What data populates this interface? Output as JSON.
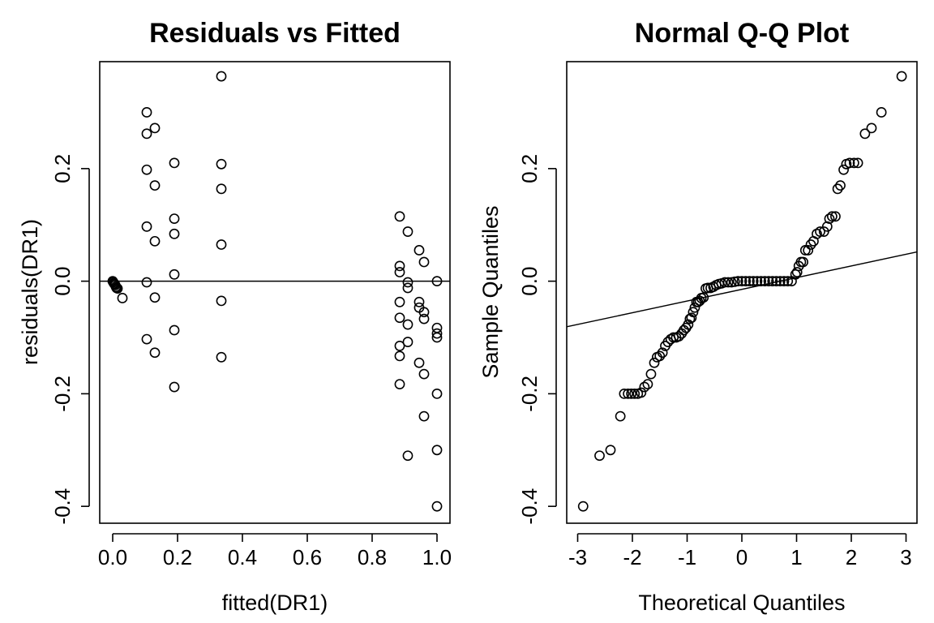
{
  "chart_data": [
    {
      "type": "scatter",
      "title": "Residuals vs Fitted",
      "xlabel": "fitted(DR1)",
      "ylabel": "residuals(DR1)",
      "xlim": [
        -0.04,
        1.04
      ],
      "ylim": [
        -0.43,
        0.39
      ],
      "xticks": [
        0.0,
        0.2,
        0.4,
        0.6,
        0.8,
        1.0
      ],
      "xtick_labels": [
        "0.0",
        "0.2",
        "0.4",
        "0.6",
        "0.8",
        "1.0"
      ],
      "yticks": [
        -0.4,
        -0.2,
        0.0,
        0.2
      ],
      "ytick_labels": [
        "-0.4",
        "-0.2",
        "0.0",
        "0.2"
      ],
      "hline": 0.0,
      "grid": false,
      "points": [
        [
          0.0,
          0.0
        ],
        [
          0.002,
          -0.002
        ],
        [
          0.004,
          -0.004
        ],
        [
          0.006,
          -0.005
        ],
        [
          0.008,
          -0.007
        ],
        [
          0.01,
          -0.01
        ],
        [
          0.012,
          -0.012
        ],
        [
          0.015,
          -0.013
        ],
        [
          0.03,
          -0.03
        ],
        [
          0.105,
          0.3
        ],
        [
          0.105,
          0.262
        ],
        [
          0.105,
          0.198
        ],
        [
          0.105,
          0.097
        ],
        [
          0.105,
          -0.002
        ],
        [
          0.105,
          -0.103
        ],
        [
          0.13,
          0.272
        ],
        [
          0.13,
          0.17
        ],
        [
          0.13,
          0.071
        ],
        [
          0.13,
          -0.029
        ],
        [
          0.13,
          -0.127
        ],
        [
          0.19,
          0.21
        ],
        [
          0.19,
          0.111
        ],
        [
          0.19,
          0.084
        ],
        [
          0.19,
          0.012
        ],
        [
          0.19,
          -0.087
        ],
        [
          0.19,
          -0.188
        ],
        [
          0.335,
          0.364
        ],
        [
          0.335,
          0.208
        ],
        [
          0.335,
          0.164
        ],
        [
          0.335,
          0.065
        ],
        [
          0.335,
          -0.035
        ],
        [
          0.335,
          -0.135
        ],
        [
          0.885,
          0.115
        ],
        [
          0.885,
          0.027
        ],
        [
          0.885,
          0.016
        ],
        [
          0.885,
          -0.037
        ],
        [
          0.885,
          -0.065
        ],
        [
          0.885,
          -0.115
        ],
        [
          0.885,
          -0.133
        ],
        [
          0.885,
          -0.183
        ],
        [
          0.91,
          0.088
        ],
        [
          0.91,
          -0.002
        ],
        [
          0.91,
          -0.012
        ],
        [
          0.91,
          -0.077
        ],
        [
          0.91,
          -0.108
        ],
        [
          0.91,
          -0.31
        ],
        [
          0.945,
          0.055
        ],
        [
          0.945,
          -0.037
        ],
        [
          0.945,
          -0.047
        ],
        [
          0.945,
          -0.145
        ],
        [
          0.96,
          0.034
        ],
        [
          0.96,
          -0.055
        ],
        [
          0.96,
          -0.067
        ],
        [
          0.96,
          -0.165
        ],
        [
          0.96,
          -0.24
        ],
        [
          1.0,
          0.0
        ],
        [
          1.0,
          -0.083
        ],
        [
          1.0,
          -0.093
        ],
        [
          1.0,
          -0.1
        ],
        [
          1.0,
          -0.2
        ],
        [
          1.0,
          -0.3
        ],
        [
          1.0,
          -0.4
        ]
      ]
    },
    {
      "type": "scatter",
      "title": "Normal Q-Q Plot",
      "xlabel": "Theoretical Quantiles",
      "ylabel": "Sample Quantiles",
      "xlim": [
        -3.2,
        3.2
      ],
      "ylim": [
        -0.43,
        0.39
      ],
      "xticks": [
        -3,
        -2,
        -1,
        0,
        1,
        2,
        3
      ],
      "xtick_labels": [
        "-3",
        "-2",
        "-1",
        "0",
        "1",
        "2",
        "3"
      ],
      "yticks": [
        -0.4,
        -0.2,
        0.0,
        0.2
      ],
      "ytick_labels": [
        "-0.4",
        "-0.2",
        "0.0",
        "0.2"
      ],
      "grid": false,
      "qqline": {
        "x": [
          -3.2,
          3.2
        ],
        "y": [
          -0.081,
          0.052
        ]
      },
      "points": [
        [
          -2.9,
          -0.4
        ],
        [
          -2.6,
          -0.31
        ],
        [
          -2.4,
          -0.3
        ],
        [
          -2.22,
          -0.24
        ],
        [
          -2.15,
          -0.2
        ],
        [
          -2.08,
          -0.2
        ],
        [
          -2.02,
          -0.2
        ],
        [
          -1.96,
          -0.2
        ],
        [
          -1.9,
          -0.2
        ],
        [
          -1.84,
          -0.198
        ],
        [
          -1.78,
          -0.188
        ],
        [
          -1.72,
          -0.183
        ],
        [
          -1.66,
          -0.165
        ],
        [
          -1.6,
          -0.145
        ],
        [
          -1.55,
          -0.135
        ],
        [
          -1.5,
          -0.133
        ],
        [
          -1.45,
          -0.127
        ],
        [
          -1.4,
          -0.115
        ],
        [
          -1.35,
          -0.108
        ],
        [
          -1.3,
          -0.103
        ],
        [
          -1.25,
          -0.1
        ],
        [
          -1.2,
          -0.1
        ],
        [
          -1.15,
          -0.098
        ],
        [
          -1.1,
          -0.093
        ],
        [
          -1.06,
          -0.087
        ],
        [
          -1.02,
          -0.083
        ],
        [
          -0.98,
          -0.077
        ],
        [
          -0.95,
          -0.067
        ],
        [
          -0.92,
          -0.065
        ],
        [
          -0.89,
          -0.055
        ],
        [
          -0.86,
          -0.047
        ],
        [
          -0.83,
          -0.037
        ],
        [
          -0.8,
          -0.037
        ],
        [
          -0.77,
          -0.035
        ],
        [
          -0.74,
          -0.03
        ],
        [
          -0.7,
          -0.029
        ],
        [
          -0.66,
          -0.013
        ],
        [
          -0.62,
          -0.012
        ],
        [
          -0.57,
          -0.012
        ],
        [
          -0.52,
          -0.01
        ],
        [
          -0.47,
          -0.007
        ],
        [
          -0.42,
          -0.005
        ],
        [
          -0.37,
          -0.004
        ],
        [
          -0.31,
          -0.002
        ],
        [
          -0.25,
          -0.002
        ],
        [
          -0.19,
          -0.002
        ],
        [
          -0.13,
          -0.001
        ],
        [
          -0.07,
          0.0
        ],
        [
          0.0,
          0.0
        ],
        [
          0.07,
          0.0
        ],
        [
          0.14,
          0.0
        ],
        [
          0.21,
          0.0
        ],
        [
          0.28,
          0.0
        ],
        [
          0.35,
          0.0
        ],
        [
          0.42,
          0.0
        ],
        [
          0.49,
          0.0
        ],
        [
          0.56,
          0.0
        ],
        [
          0.63,
          0.0
        ],
        [
          0.7,
          0.0
        ],
        [
          0.77,
          0.0
        ],
        [
          0.84,
          0.0
        ],
        [
          0.91,
          0.0
        ],
        [
          0.98,
          0.012
        ],
        [
          1.01,
          0.016
        ],
        [
          1.04,
          0.027
        ],
        [
          1.08,
          0.034
        ],
        [
          1.12,
          0.034
        ],
        [
          1.16,
          0.055
        ],
        [
          1.21,
          0.055
        ],
        [
          1.26,
          0.065
        ],
        [
          1.31,
          0.071
        ],
        [
          1.37,
          0.084
        ],
        [
          1.43,
          0.088
        ],
        [
          1.5,
          0.088
        ],
        [
          1.56,
          0.097
        ],
        [
          1.6,
          0.111
        ],
        [
          1.65,
          0.115
        ],
        [
          1.71,
          0.115
        ],
        [
          1.75,
          0.164
        ],
        [
          1.8,
          0.17
        ],
        [
          1.86,
          0.198
        ],
        [
          1.91,
          0.208
        ],
        [
          1.97,
          0.21
        ],
        [
          2.05,
          0.21
        ],
        [
          2.12,
          0.21
        ],
        [
          2.25,
          0.262
        ],
        [
          2.37,
          0.272
        ],
        [
          2.55,
          0.3
        ],
        [
          2.92,
          0.364
        ]
      ]
    }
  ]
}
